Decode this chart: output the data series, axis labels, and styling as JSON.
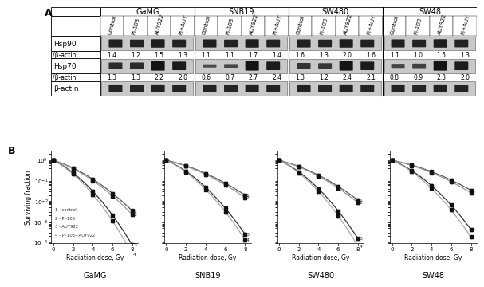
{
  "panel_A": {
    "cell_lines": [
      "GaMG",
      "SNB19",
      "SW480",
      "SW48"
    ],
    "conditions": [
      "Control",
      "PI-103",
      "AUY922",
      "PI+AUY"
    ],
    "hsp90_values": {
      "GaMG": [
        1.4,
        1.2,
        1.5,
        1.3
      ],
      "SNB19": [
        1.1,
        1.1,
        1.7,
        1.4
      ],
      "SW480": [
        1.6,
        1.3,
        2.0,
        1.6
      ],
      "SW48": [
        1.1,
        1.0,
        1.5,
        1.3
      ]
    },
    "hsp70_values": {
      "GaMG": [
        1.3,
        1.3,
        2.2,
        2.0
      ],
      "SNB19": [
        0.6,
        0.7,
        2.7,
        2.4
      ],
      "SW480": [
        1.3,
        1.2,
        2.4,
        2.1
      ],
      "SW48": [
        0.8,
        0.9,
        2.3,
        2.0
      ]
    },
    "hsp70_band_intensities": {
      "GaMG": [
        0.7,
        0.7,
        1.0,
        0.9
      ],
      "SNB19": [
        0.3,
        0.35,
        1.0,
        0.9
      ],
      "SW480": [
        0.6,
        0.55,
        1.0,
        0.9
      ],
      "SW48": [
        0.4,
        0.45,
        1.0,
        0.9
      ]
    }
  },
  "panel_B": {
    "cell_lines": [
      "GaMG",
      "SNB19",
      "SW480",
      "SW48"
    ],
    "xlabel": "Radiation dose, Gy",
    "ylabel": "Surviving fraction",
    "legend": [
      "1 - control",
      "2 - PI-103",
      "3 - AUY922",
      "4 - PI-103+AUY922"
    ],
    "x_ticks": [
      0,
      2,
      4,
      6,
      8
    ],
    "curve_params": {
      "GaMG": {
        "control": {
          "alpha": 0.35,
          "beta": 0.045
        },
        "pi103": {
          "alpha": 0.38,
          "beta": 0.048
        },
        "auy922": {
          "alpha": 0.55,
          "beta": 0.08
        },
        "pi_auy": {
          "alpha": 0.6,
          "beta": 0.09
        }
      },
      "SNB19": {
        "control": {
          "alpha": 0.25,
          "beta": 0.03
        },
        "pi103": {
          "alpha": 0.27,
          "beta": 0.032
        },
        "auy922": {
          "alpha": 0.48,
          "beta": 0.07
        },
        "pi_auy": {
          "alpha": 0.52,
          "beta": 0.075
        }
      },
      "SW480": {
        "control": {
          "alpha": 0.28,
          "beta": 0.035
        },
        "pi103": {
          "alpha": 0.3,
          "beta": 0.037
        },
        "auy922": {
          "alpha": 0.5,
          "beta": 0.075
        },
        "pi_auy": {
          "alpha": 0.55,
          "beta": 0.082
        }
      },
      "SW48": {
        "control": {
          "alpha": 0.22,
          "beta": 0.025
        },
        "pi103": {
          "alpha": 0.24,
          "beta": 0.027
        },
        "auy922": {
          "alpha": 0.45,
          "beta": 0.065
        },
        "pi_auy": {
          "alpha": 0.5,
          "beta": 0.072
        }
      }
    },
    "data_points_x": [
      0,
      2,
      4,
      6,
      8
    ]
  },
  "bg_color": "#ffffff",
  "blot_bg": "#c8c8c8",
  "font_size_title": 9,
  "font_size_cell": 7,
  "font_size_cond": 5,
  "font_size_val": 5.5,
  "font_size_label": 6.5,
  "font_size_axis": 5.5
}
